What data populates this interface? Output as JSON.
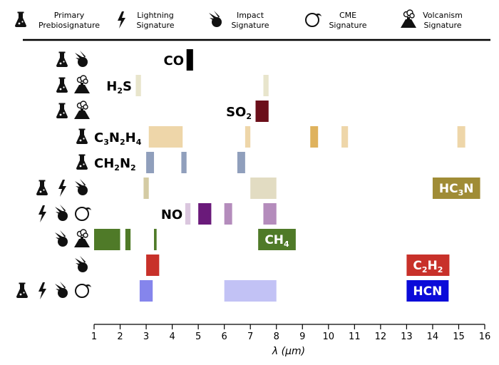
{
  "legend": [
    {
      "icon": "flask-icon",
      "label_lines": [
        "Primary",
        "Prebiosignature"
      ]
    },
    {
      "icon": "lightning-icon",
      "label_lines": [
        "Lightning",
        "Signature"
      ]
    },
    {
      "icon": "comet-icon",
      "label_lines": [
        "Impact",
        "Signature"
      ]
    },
    {
      "icon": "cme-icon",
      "label_lines": [
        "CME",
        "Signature"
      ]
    },
    {
      "icon": "volcano-icon",
      "label_lines": [
        "Volcanism",
        "Signature"
      ]
    }
  ],
  "chart_data": {
    "type": "bar",
    "orientation": "horizontal-range",
    "xlabel": "λ (μm)",
    "xlim": [
      1,
      16
    ],
    "xticks": [
      "1",
      "2",
      "3",
      "4",
      "5",
      "6",
      "7",
      "8",
      "9",
      "10",
      "11",
      "12",
      "13",
      "14",
      "15",
      "16"
    ],
    "grid": false,
    "molecules": [
      {
        "label": "CO",
        "parts": [
          [
            "CO",
            ""
          ]
        ],
        "icons": [
          "flask-icon",
          "comet-icon"
        ],
        "label_at": 4.45,
        "label_anchor": "end",
        "label_style": "text",
        "color": "#000000",
        "bands": [
          {
            "x0": 4.55,
            "x1": 4.8,
            "opacity": 1.0
          }
        ]
      },
      {
        "label": "H2S",
        "parts": [
          [
            "H",
            ""
          ],
          [
            "2",
            "sub"
          ],
          [
            "S",
            ""
          ]
        ],
        "icons": [
          "flask-icon",
          "volcano-icon"
        ],
        "label_at": 2.45,
        "label_anchor": "end",
        "label_style": "text",
        "color": "#d6d0a3",
        "bands": [
          {
            "x0": 2.6,
            "x1": 2.8,
            "opacity": 0.55
          },
          {
            "x0": 7.5,
            "x1": 7.7,
            "opacity": 0.55
          }
        ]
      },
      {
        "label": "SO2",
        "parts": [
          [
            "SO",
            ""
          ],
          [
            "2",
            "sub"
          ]
        ],
        "icons": [
          "flask-icon",
          "volcano-icon"
        ],
        "label_at": 7.05,
        "label_anchor": "end",
        "label_style": "text",
        "color": "#6b0f1a",
        "bands": [
          {
            "x0": 7.2,
            "x1": 7.7,
            "opacity": 1.0
          }
        ]
      },
      {
        "label": "C3N2H4",
        "parts": [
          [
            "C",
            ""
          ],
          [
            "3",
            "sub"
          ],
          [
            "N",
            ""
          ],
          [
            "2",
            "sub"
          ],
          [
            "H",
            ""
          ],
          [
            "4",
            "sub"
          ]
        ],
        "icons": [
          "flask-icon"
        ],
        "label_at": 1.0,
        "label_anchor": "start",
        "label_style": "text",
        "color": "#d9a441",
        "bands": [
          {
            "x0": 3.1,
            "x1": 4.4,
            "opacity": 0.45
          },
          {
            "x0": 6.8,
            "x1": 7.0,
            "opacity": 0.45
          },
          {
            "x0": 9.3,
            "x1": 9.6,
            "opacity": 0.85
          },
          {
            "x0": 10.5,
            "x1": 10.75,
            "opacity": 0.45
          },
          {
            "x0": 14.95,
            "x1": 15.25,
            "opacity": 0.45
          }
        ]
      },
      {
        "label": "CH2N2",
        "parts": [
          [
            "CH",
            ""
          ],
          [
            "2",
            "sub"
          ],
          [
            "N",
            ""
          ],
          [
            "2",
            "sub"
          ]
        ],
        "icons": [
          "flask-icon"
        ],
        "label_at": 1.0,
        "label_anchor": "start",
        "label_style": "text",
        "color": "#6b7fa6",
        "bands": [
          {
            "x0": 3.0,
            "x1": 3.3,
            "opacity": 0.75
          },
          {
            "x0": 4.35,
            "x1": 4.55,
            "opacity": 0.75
          },
          {
            "x0": 6.5,
            "x1": 6.8,
            "opacity": 0.75
          }
        ]
      },
      {
        "label": "HC3N",
        "parts": [
          [
            "HC",
            ""
          ],
          [
            "3",
            "sub"
          ],
          [
            "N",
            ""
          ]
        ],
        "icons": [
          "flask-icon",
          "lightning-icon",
          "comet-icon"
        ],
        "label_at": 14.0,
        "label_anchor": "box",
        "label_style": "box",
        "color": "#a08c36",
        "bands": [
          {
            "x0": 2.9,
            "x1": 3.1,
            "opacity": 0.45
          },
          {
            "x0": 7.0,
            "x1": 8.0,
            "opacity": 0.3
          }
        ]
      },
      {
        "label": "NO",
        "parts": [
          [
            "NO",
            ""
          ]
        ],
        "icons": [
          "lightning-icon",
          "comet-icon",
          "cme-icon"
        ],
        "label_at": 4.4,
        "label_anchor": "end",
        "label_style": "text",
        "color": "#6a1a7a",
        "bands": [
          {
            "x0": 4.5,
            "x1": 4.7,
            "opacity": 0.25
          },
          {
            "x0": 5.0,
            "x1": 5.5,
            "opacity": 1.0
          },
          {
            "x0": 6.0,
            "x1": 6.3,
            "opacity": 0.5
          },
          {
            "x0": 7.5,
            "x1": 8.0,
            "opacity": 0.5
          }
        ]
      },
      {
        "label": "CH4",
        "parts": [
          [
            "CH",
            ""
          ],
          [
            "4",
            "sub"
          ]
        ],
        "icons": [
          "comet-icon",
          "volcano-icon"
        ],
        "label_at": 7.3,
        "label_anchor": "box",
        "label_style": "box",
        "color": "#4f7a28",
        "bands": [
          {
            "x0": 1.0,
            "x1": 2.0,
            "opacity": 1.0
          },
          {
            "x0": 2.2,
            "x1": 2.4,
            "opacity": 1.0
          },
          {
            "x0": 3.3,
            "x1": 3.4,
            "opacity": 1.0
          }
        ]
      },
      {
        "label": "C2H2",
        "parts": [
          [
            "C",
            ""
          ],
          [
            "2",
            "sub"
          ],
          [
            "H",
            ""
          ],
          [
            "2",
            "sub"
          ]
        ],
        "icons": [
          "comet-icon"
        ],
        "label_at": 13.0,
        "label_anchor": "box",
        "label_style": "box",
        "color": "#c8312a",
        "bands": [
          {
            "x0": 3.0,
            "x1": 3.5,
            "opacity": 1.0
          }
        ]
      },
      {
        "label": "HCN",
        "parts": [
          [
            "HCN",
            ""
          ]
        ],
        "icons": [
          "flask-icon",
          "lightning-icon",
          "comet-icon",
          "cme-icon"
        ],
        "label_at": 13.0,
        "label_anchor": "box",
        "label_style": "box",
        "color": "#0b0bd9",
        "bands": [
          {
            "x0": 2.75,
            "x1": 3.25,
            "opacity": 0.5
          },
          {
            "x0": 6.0,
            "x1": 8.0,
            "opacity": 0.25
          }
        ]
      }
    ]
  }
}
